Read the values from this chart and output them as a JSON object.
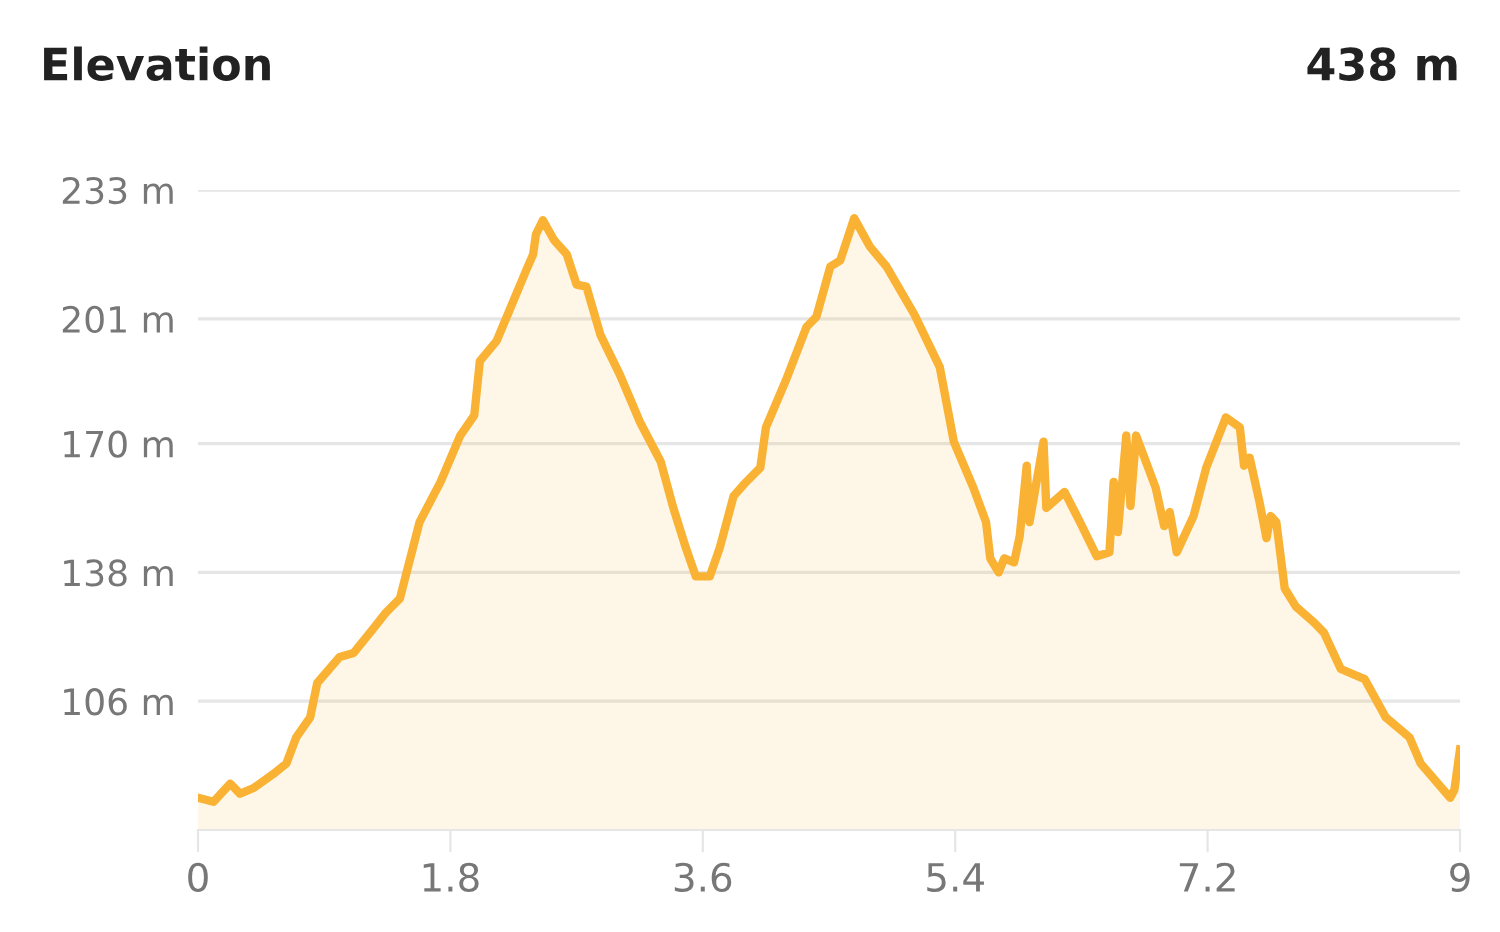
{
  "chart_data": {
    "type": "area",
    "title": "Elevation",
    "annotations": [
      "438 m"
    ],
    "xlim": [
      0,
      9
    ],
    "xticks": [
      0,
      1.8,
      3.6,
      5.4,
      7.2,
      9
    ],
    "ylim": [
      74,
      233
    ],
    "yticks": [
      {
        "value": 106,
        "label": "106 m"
      },
      {
        "value": 138,
        "label": "138 m"
      },
      {
        "value": 170,
        "label": "170 m"
      },
      {
        "value": 201,
        "label": "201 m"
      },
      {
        "value": 233,
        "label": "233 m"
      }
    ],
    "grid": "y",
    "legend": false,
    "series": [
      {
        "color": "#f9b233",
        "x": [
          0.0,
          0.11,
          0.23,
          0.3,
          0.4,
          0.54,
          0.63,
          0.7,
          0.8,
          0.85,
          1.01,
          1.11,
          1.25,
          1.34,
          1.44,
          1.58,
          1.73,
          1.87,
          1.97,
          2.01,
          2.13,
          2.25,
          2.34,
          2.39,
          2.41,
          2.46,
          2.54,
          2.63,
          2.7,
          2.77,
          2.87,
          3.01,
          3.15,
          3.3,
          3.39,
          3.48,
          3.55,
          3.65,
          3.72,
          3.82,
          3.91,
          4.01,
          4.05,
          4.19,
          4.34,
          4.41,
          4.51,
          4.58,
          4.68,
          4.79,
          4.91,
          5.11,
          5.29,
          5.39,
          5.53,
          5.62,
          5.65,
          5.71,
          5.75,
          5.82,
          5.86,
          5.91,
          5.93,
          6.03,
          6.05,
          6.18,
          6.29,
          6.41,
          6.5,
          6.53,
          6.56,
          6.62,
          6.65,
          6.69,
          6.83,
          6.89,
          6.93,
          6.98,
          7.1,
          7.19,
          7.33,
          7.43,
          7.46,
          7.5,
          7.57,
          7.62,
          7.65,
          7.69,
          7.75,
          7.83,
          7.96,
          8.03,
          8.15,
          8.32,
          8.47,
          8.64,
          8.72,
          8.93,
          8.96,
          9.0
        ],
        "values": [
          82,
          81,
          85.5,
          83,
          84.5,
          88,
          90.5,
          97,
          102,
          110.5,
          117,
          118,
          124,
          128,
          131.5,
          150.5,
          160.5,
          172,
          177,
          190.5,
          195.5,
          205.5,
          213,
          217,
          222,
          225.5,
          220.5,
          217,
          209.5,
          209,
          197,
          187,
          175.5,
          165.5,
          154,
          144,
          137,
          137,
          144,
          157,
          160.5,
          164,
          174,
          185.5,
          199,
          201.5,
          214,
          215.5,
          226,
          219,
          214,
          202,
          189,
          170.5,
          159,
          150.5,
          141.5,
          138,
          141.5,
          140.5,
          147,
          164.5,
          150.5,
          170.5,
          154,
          158,
          150.5,
          142,
          143,
          160.5,
          148,
          172,
          154.5,
          172,
          159,
          149.5,
          153,
          143,
          152,
          164,
          176.5,
          174,
          164.5,
          166.5,
          155.5,
          146.5,
          152,
          150.5,
          134,
          129.5,
          125.5,
          123,
          114,
          111.5,
          102,
          97,
          90.5,
          82,
          84,
          94
        ]
      }
    ]
  }
}
